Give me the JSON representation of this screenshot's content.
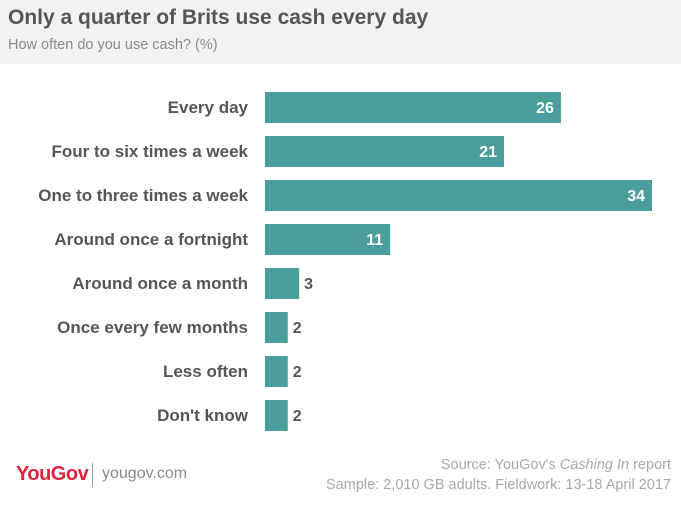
{
  "header": {
    "title": "Only a quarter of Brits use cash every day",
    "subtitle": "How often do you use cash? (%)"
  },
  "chart_data": {
    "type": "bar",
    "orientation": "horizontal",
    "categories": [
      "Every day",
      "Four to six times a week",
      "One to three times a week",
      "Around once a fortnight",
      "Around once a month",
      "Once every few months",
      "Less often",
      "Don't know"
    ],
    "values": [
      26,
      21,
      34,
      11,
      3,
      2,
      2,
      2
    ],
    "title": "Only a quarter of Brits use cash every day",
    "subtitle": "How often do you use cash? (%)",
    "xlabel": "",
    "ylabel": "",
    "xlim": [
      0,
      34
    ],
    "grid": false,
    "legend": "none",
    "data_labels": true,
    "bar_color": "#4a9e9c"
  },
  "footer": {
    "logo": "YouGov",
    "site": "yougov.com",
    "source_prefix": "Source: YouGov's ",
    "source_title": "Cashing In",
    "source_suffix": " report",
    "sample": "Sample: 2,010 GB adults. Fieldwork: 13-18 April 2017"
  },
  "colors": {
    "bar": "#4a9e9c",
    "label_inside": "#ffffff",
    "label_outside": "#555555",
    "brand": "#e0223c",
    "header_bg": "#f2f2f2"
  }
}
